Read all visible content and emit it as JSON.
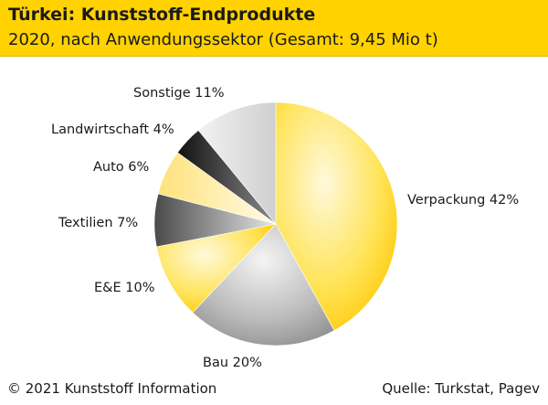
{
  "header": {
    "title": "Türkei: Kunststoff-Endprodukte",
    "subtitle": "2020, nach Anwendungssektor (Gesamt: 9,45 Mio t)"
  },
  "footer": {
    "copyright": "© 2021 Kunststoff Information",
    "source": "Quelle: Turkstat, Pagev"
  },
  "colors": {
    "header_bg": "#ffd200"
  },
  "chart_data": {
    "type": "pie",
    "title": "Türkei: Kunststoff-Endprodukte",
    "subtitle": "2020, nach Anwendungssektor (Gesamt: 9,45 Mio t)",
    "unit": "%",
    "slices": [
      {
        "label": "Verpackung",
        "value": 42,
        "display": "Verpackung 42%",
        "color": "#ffd200",
        "gradient": "yellow"
      },
      {
        "label": "Bau",
        "value": 20,
        "display": "Bau 20%",
        "color": "#a6a6a6",
        "gradient": "gray"
      },
      {
        "label": "E&E",
        "value": 10,
        "display": "E&E 10%",
        "color": "#ffd200",
        "gradient": "yellow"
      },
      {
        "label": "Textilien",
        "value": 7,
        "display": "Textilien 7%",
        "color": "#5f5f5f",
        "gradient": "dark"
      },
      {
        "label": "Auto",
        "value": 6,
        "display": "Auto 6%",
        "color": "#ffe680",
        "gradient": "lightyellow"
      },
      {
        "label": "Landwirtschaft",
        "value": 4,
        "display": "Landwirtschaft 4%",
        "color": "#1a1a1a",
        "gradient": "black"
      },
      {
        "label": "Sonstige",
        "value": 11,
        "display": "Sonstige 11%",
        "color": "#dcdcdc",
        "gradient": "lightgray"
      }
    ],
    "start": "12 o'clock",
    "direction": "clockwise",
    "legend": "none"
  }
}
